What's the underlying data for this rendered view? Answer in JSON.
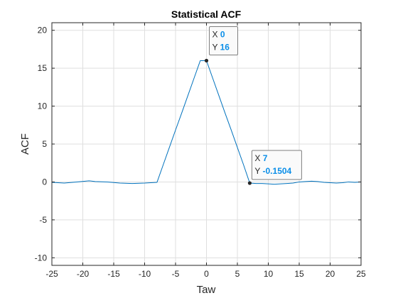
{
  "chart_data": {
    "type": "line",
    "title": "Statistical ACF",
    "xlabel": "Taw",
    "ylabel": "ACF",
    "xlim": [
      -25,
      25
    ],
    "ylim": [
      -11,
      21
    ],
    "grid": true,
    "line_color": "#0072BD",
    "x_ticks": [
      -25,
      -20,
      -15,
      -10,
      -5,
      0,
      5,
      10,
      15,
      20,
      25
    ],
    "x_tick_labels": [
      "-25",
      "-20",
      "-15",
      "-10",
      "-5",
      "0",
      "5",
      "10",
      "15",
      "20",
      "25"
    ],
    "y_ticks": [
      -10,
      -5,
      0,
      5,
      10,
      15,
      20
    ],
    "y_tick_labels": [
      "-10",
      "-5",
      "0",
      "5",
      "10",
      "15",
      "20"
    ],
    "series": [
      {
        "x": [
          -25,
          -23,
          -21,
          -19,
          -18,
          -16,
          -14,
          -12,
          -10,
          -9,
          -8,
          -7,
          -6,
          -5,
          -4,
          -3,
          -2,
          -1,
          0,
          1,
          2,
          3,
          4,
          5,
          6,
          7,
          8,
          9,
          10,
          11,
          12,
          13,
          14,
          15,
          16,
          17,
          18,
          19,
          20,
          21,
          22,
          23,
          24,
          25
        ],
        "y": [
          -0.05,
          -0.15,
          0.0,
          0.15,
          0.05,
          0.0,
          -0.15,
          -0.2,
          -0.15,
          -0.1,
          -0.05,
          2.25,
          4.55,
          6.85,
          9.1,
          11.4,
          13.7,
          16.0,
          16.0,
          13.7,
          11.4,
          9.1,
          6.85,
          4.55,
          2.25,
          -0.1504,
          -0.2,
          -0.2,
          -0.25,
          -0.3,
          -0.25,
          -0.2,
          -0.15,
          0.0,
          0.05,
          0.1,
          0.05,
          -0.05,
          -0.1,
          -0.15,
          -0.1,
          0.0,
          -0.05,
          0.0
        ]
      }
    ],
    "datatips": [
      {
        "x_label": "X",
        "x_value": "0",
        "y_label": "Y",
        "y_value": "16",
        "point": [
          0,
          16
        ]
      },
      {
        "x_label": "X",
        "x_value": "7",
        "y_label": "Y",
        "y_value": "-0.1504",
        "point": [
          7,
          -0.1504
        ]
      }
    ]
  }
}
